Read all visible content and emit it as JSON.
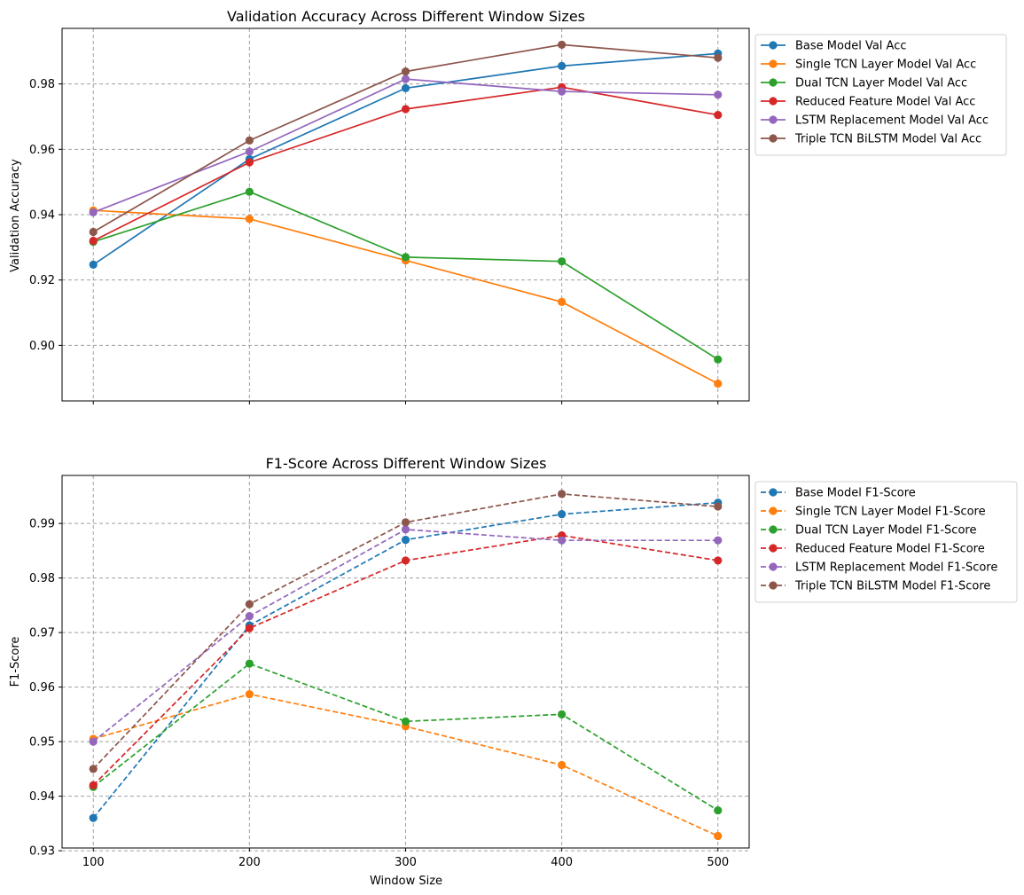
{
  "chart_data": [
    {
      "type": "line",
      "title": "Validation Accuracy Across Different Window Sizes",
      "xlabel": "",
      "ylabel": "Validation Accuracy",
      "x": [
        100,
        200,
        300,
        400,
        500
      ],
      "xlim": [
        80,
        520
      ],
      "ylim": [
        0.883,
        0.997
      ],
      "yticks": [
        0.9,
        0.92,
        0.94,
        0.96,
        0.98
      ],
      "ytick_labels": [
        "0.90",
        "0.92",
        "0.94",
        "0.96",
        "0.98"
      ],
      "xtick_labels_shown": false,
      "linestyle": "solid",
      "grid": true,
      "legend_position": "outside-right-top",
      "series": [
        {
          "name": "Base Model Val Acc",
          "color": "#1f77b4",
          "values": [
            0.9247,
            0.957,
            0.9787,
            0.9855,
            0.9893
          ]
        },
        {
          "name": "Single TCN Layer Model Val Acc",
          "color": "#ff7f0e",
          "values": [
            0.9413,
            0.9387,
            0.926,
            0.9133,
            0.8883
          ]
        },
        {
          "name": "Dual TCN Layer Model Val Acc",
          "color": "#2ca02c",
          "values": [
            0.9317,
            0.947,
            0.927,
            0.9257,
            0.8957
          ]
        },
        {
          "name": "Reduced Feature Model Val Acc",
          "color": "#d62728",
          "values": [
            0.932,
            0.956,
            0.9723,
            0.979,
            0.9705
          ]
        },
        {
          "name": "LSTM Replacement Model Val Acc",
          "color": "#9467bd",
          "values": [
            0.9407,
            0.9593,
            0.9815,
            0.9777,
            0.9767
          ]
        },
        {
          "name": "Triple TCN BiLSTM Model  Val Acc",
          "color": "#8c564b",
          "values": [
            0.9347,
            0.9627,
            0.9838,
            0.992,
            0.988
          ]
        }
      ]
    },
    {
      "type": "line",
      "title": "F1-Score Across Different Window Sizes",
      "xlabel": "Window Size",
      "ylabel": "F1-Score",
      "x": [
        100,
        200,
        300,
        400,
        500
      ],
      "xlim": [
        80,
        520
      ],
      "ylim": [
        0.9305,
        0.9988
      ],
      "yticks": [
        0.93,
        0.94,
        0.95,
        0.96,
        0.97,
        0.98,
        0.99
      ],
      "ytick_labels": [
        "0.93",
        "0.94",
        "0.95",
        "0.96",
        "0.97",
        "0.98",
        "0.99"
      ],
      "xtick_labels": [
        "100",
        "200",
        "300",
        "400",
        "500"
      ],
      "xtick_labels_shown": true,
      "linestyle": "dashed",
      "grid": true,
      "legend_position": "outside-right-top",
      "series": [
        {
          "name": "Base Model F1-Score",
          "color": "#1f77b4",
          "values": [
            0.936,
            0.9713,
            0.987,
            0.9917,
            0.9938
          ]
        },
        {
          "name": "Single TCN Layer Model F1-Score",
          "color": "#ff7f0e",
          "values": [
            0.9505,
            0.9587,
            0.9528,
            0.9457,
            0.9327
          ]
        },
        {
          "name": "Dual TCN Layer Model F1-Score",
          "color": "#2ca02c",
          "values": [
            0.9417,
            0.9643,
            0.9537,
            0.955,
            0.9374
          ]
        },
        {
          "name": "Reduced Feature Model F1-Score",
          "color": "#d62728",
          "values": [
            0.942,
            0.9708,
            0.9832,
            0.9878,
            0.9832
          ]
        },
        {
          "name": "LSTM Replacement Model F1-Score",
          "color": "#9467bd",
          "values": [
            0.95,
            0.973,
            0.9889,
            0.9869,
            0.9869
          ]
        },
        {
          "name": "Triple TCN BiLSTM Model  F1-Score",
          "color": "#8c564b",
          "values": [
            0.945,
            0.9752,
            0.9902,
            0.9954,
            0.9931
          ]
        }
      ]
    }
  ]
}
